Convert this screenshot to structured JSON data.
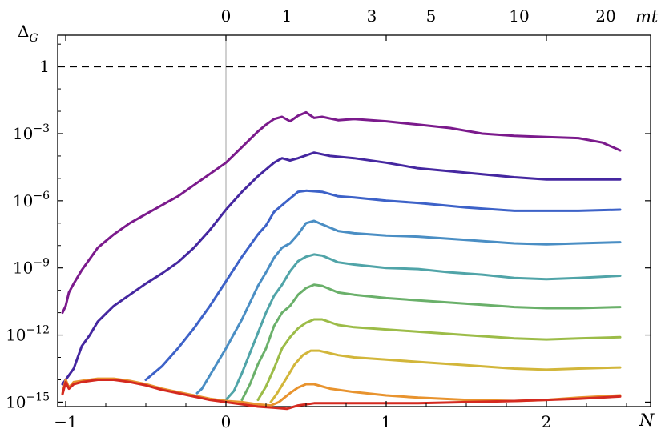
{
  "chart_data": {
    "type": "line",
    "title": "",
    "xlabel": "N",
    "ylabel": "Δ",
    "ylabel_sub": "G",
    "top_axis_label": "mt",
    "xlim": [
      -1.05,
      2.65
    ],
    "ylim_log10": [
      -15.2,
      1.4
    ],
    "y_scale": "log",
    "grid": false,
    "legend": "none",
    "x_ticks": [
      -1,
      0,
      1,
      2
    ],
    "x_tick_labels": [
      "−1",
      "0",
      "1",
      "2"
    ],
    "y_ticks_log10": [
      -15,
      -12,
      -9,
      -6,
      -3,
      0
    ],
    "y_tick_mant": [
      "10",
      "10",
      "10",
      "10",
      "10",
      "1"
    ],
    "y_tick_exp": [
      "−15",
      "−12",
      "−9",
      "−6",
      "−3",
      ""
    ],
    "top_ticks_N": [
      0.0,
      0.38,
      0.91,
      1.28,
      1.83,
      2.37
    ],
    "top_tick_labels": [
      "0",
      "1",
      "3",
      "5",
      "10",
      "20"
    ],
    "reference_line": {
      "log10": 0,
      "style": "dashed",
      "color": "#000000"
    },
    "vertical_line": {
      "x": 0,
      "color": "#b0b0b0"
    },
    "series": [
      {
        "color": "#7b1a8c",
        "points": [
          [
            -1.02,
            -11.0
          ],
          [
            -1.0,
            -10.7
          ],
          [
            -0.98,
            -10.1
          ],
          [
            -0.95,
            -9.7
          ],
          [
            -0.9,
            -9.1
          ],
          [
            -0.85,
            -8.6
          ],
          [
            -0.8,
            -8.1
          ],
          [
            -0.7,
            -7.5
          ],
          [
            -0.6,
            -7.0
          ],
          [
            -0.5,
            -6.6
          ],
          [
            -0.4,
            -6.2
          ],
          [
            -0.3,
            -5.8
          ],
          [
            -0.2,
            -5.3
          ],
          [
            -0.1,
            -4.8
          ],
          [
            0.0,
            -4.3
          ],
          [
            0.1,
            -3.6
          ],
          [
            0.2,
            -2.9
          ],
          [
            0.25,
            -2.6
          ],
          [
            0.3,
            -2.35
          ],
          [
            0.35,
            -2.25
          ],
          [
            0.4,
            -2.45
          ],
          [
            0.45,
            -2.2
          ],
          [
            0.5,
            -2.05
          ],
          [
            0.55,
            -2.3
          ],
          [
            0.6,
            -2.25
          ],
          [
            0.7,
            -2.4
          ],
          [
            0.8,
            -2.35
          ],
          [
            1.0,
            -2.45
          ],
          [
            1.2,
            -2.6
          ],
          [
            1.4,
            -2.75
          ],
          [
            1.6,
            -3.0
          ],
          [
            1.8,
            -3.1
          ],
          [
            2.0,
            -3.15
          ],
          [
            2.2,
            -3.2
          ],
          [
            2.35,
            -3.4
          ],
          [
            2.46,
            -3.75
          ]
        ]
      },
      {
        "color": "#4527a0",
        "points": [
          [
            -1.02,
            -14.2
          ],
          [
            -0.98,
            -13.8
          ],
          [
            -0.95,
            -13.5
          ],
          [
            -0.9,
            -12.5
          ],
          [
            -0.85,
            -12.0
          ],
          [
            -0.8,
            -11.4
          ],
          [
            -0.7,
            -10.7
          ],
          [
            -0.6,
            -10.2
          ],
          [
            -0.5,
            -9.7
          ],
          [
            -0.4,
            -9.25
          ],
          [
            -0.3,
            -8.75
          ],
          [
            -0.2,
            -8.1
          ],
          [
            -0.1,
            -7.3
          ],
          [
            0.0,
            -6.4
          ],
          [
            0.1,
            -5.6
          ],
          [
            0.2,
            -4.9
          ],
          [
            0.3,
            -4.3
          ],
          [
            0.35,
            -4.1
          ],
          [
            0.4,
            -4.2
          ],
          [
            0.45,
            -4.1
          ],
          [
            0.55,
            -3.85
          ],
          [
            0.65,
            -4.0
          ],
          [
            0.8,
            -4.1
          ],
          [
            1.0,
            -4.3
          ],
          [
            1.2,
            -4.55
          ],
          [
            1.5,
            -4.75
          ],
          [
            1.8,
            -4.95
          ],
          [
            2.0,
            -5.05
          ],
          [
            2.2,
            -5.05
          ],
          [
            2.46,
            -5.05
          ]
        ]
      },
      {
        "color": "#3d62c8",
        "points": [
          [
            -0.5,
            -14.0
          ],
          [
            -0.45,
            -13.7
          ],
          [
            -0.4,
            -13.4
          ],
          [
            -0.3,
            -12.6
          ],
          [
            -0.2,
            -11.7
          ],
          [
            -0.1,
            -10.7
          ],
          [
            0.0,
            -9.6
          ],
          [
            0.1,
            -8.5
          ],
          [
            0.2,
            -7.5
          ],
          [
            0.25,
            -7.1
          ],
          [
            0.3,
            -6.5
          ],
          [
            0.35,
            -6.2
          ],
          [
            0.4,
            -5.9
          ],
          [
            0.45,
            -5.6
          ],
          [
            0.5,
            -5.55
          ],
          [
            0.6,
            -5.6
          ],
          [
            0.7,
            -5.8
          ],
          [
            0.8,
            -5.85
          ],
          [
            1.0,
            -6.0
          ],
          [
            1.2,
            -6.1
          ],
          [
            1.5,
            -6.3
          ],
          [
            1.8,
            -6.45
          ],
          [
            2.0,
            -6.45
          ],
          [
            2.2,
            -6.45
          ],
          [
            2.46,
            -6.4
          ]
        ]
      },
      {
        "color": "#4a8ec4",
        "points": [
          [
            -0.18,
            -14.6
          ],
          [
            -0.15,
            -14.4
          ],
          [
            -0.1,
            -13.8
          ],
          [
            0.0,
            -12.6
          ],
          [
            0.1,
            -11.3
          ],
          [
            0.2,
            -9.8
          ],
          [
            0.25,
            -9.2
          ],
          [
            0.3,
            -8.55
          ],
          [
            0.35,
            -8.1
          ],
          [
            0.4,
            -7.9
          ],
          [
            0.45,
            -7.5
          ],
          [
            0.5,
            -7.0
          ],
          [
            0.55,
            -6.9
          ],
          [
            0.6,
            -7.05
          ],
          [
            0.7,
            -7.35
          ],
          [
            0.8,
            -7.45
          ],
          [
            1.0,
            -7.55
          ],
          [
            1.2,
            -7.6
          ],
          [
            1.5,
            -7.75
          ],
          [
            1.8,
            -7.9
          ],
          [
            2.0,
            -7.95
          ],
          [
            2.2,
            -7.9
          ],
          [
            2.46,
            -7.85
          ]
        ]
      },
      {
        "color": "#50a4a8",
        "points": [
          [
            0.0,
            -14.9
          ],
          [
            0.05,
            -14.5
          ],
          [
            0.1,
            -13.7
          ],
          [
            0.15,
            -12.8
          ],
          [
            0.2,
            -11.9
          ],
          [
            0.25,
            -11.0
          ],
          [
            0.3,
            -10.25
          ],
          [
            0.35,
            -9.75
          ],
          [
            0.4,
            -9.15
          ],
          [
            0.45,
            -8.7
          ],
          [
            0.5,
            -8.5
          ],
          [
            0.55,
            -8.4
          ],
          [
            0.6,
            -8.45
          ],
          [
            0.7,
            -8.75
          ],
          [
            0.8,
            -8.85
          ],
          [
            1.0,
            -9.0
          ],
          [
            1.2,
            -9.05
          ],
          [
            1.4,
            -9.2
          ],
          [
            1.6,
            -9.3
          ],
          [
            1.8,
            -9.45
          ],
          [
            2.0,
            -9.5
          ],
          [
            2.2,
            -9.45
          ],
          [
            2.46,
            -9.35
          ]
        ]
      },
      {
        "color": "#6ab06a",
        "points": [
          [
            0.1,
            -14.9
          ],
          [
            0.15,
            -14.2
          ],
          [
            0.2,
            -13.3
          ],
          [
            0.25,
            -12.6
          ],
          [
            0.3,
            -11.6
          ],
          [
            0.35,
            -11.0
          ],
          [
            0.4,
            -10.7
          ],
          [
            0.45,
            -10.2
          ],
          [
            0.5,
            -9.9
          ],
          [
            0.55,
            -9.75
          ],
          [
            0.6,
            -9.8
          ],
          [
            0.7,
            -10.1
          ],
          [
            0.8,
            -10.2
          ],
          [
            1.0,
            -10.35
          ],
          [
            1.2,
            -10.45
          ],
          [
            1.5,
            -10.6
          ],
          [
            1.8,
            -10.75
          ],
          [
            2.0,
            -10.8
          ],
          [
            2.2,
            -10.8
          ],
          [
            2.46,
            -10.75
          ]
        ]
      },
      {
        "color": "#9cbc48",
        "points": [
          [
            0.2,
            -14.9
          ],
          [
            0.25,
            -14.3
          ],
          [
            0.3,
            -13.5
          ],
          [
            0.35,
            -12.6
          ],
          [
            0.4,
            -12.1
          ],
          [
            0.45,
            -11.7
          ],
          [
            0.5,
            -11.45
          ],
          [
            0.55,
            -11.3
          ],
          [
            0.6,
            -11.3
          ],
          [
            0.7,
            -11.55
          ],
          [
            0.8,
            -11.65
          ],
          [
            1.0,
            -11.75
          ],
          [
            1.2,
            -11.85
          ],
          [
            1.5,
            -12.0
          ],
          [
            1.8,
            -12.15
          ],
          [
            2.0,
            -12.2
          ],
          [
            2.2,
            -12.15
          ],
          [
            2.46,
            -12.1
          ]
        ]
      },
      {
        "color": "#d2b63a",
        "points": [
          [
            0.28,
            -15.0
          ],
          [
            0.32,
            -14.6
          ],
          [
            0.38,
            -13.9
          ],
          [
            0.43,
            -13.3
          ],
          [
            0.48,
            -12.9
          ],
          [
            0.53,
            -12.7
          ],
          [
            0.58,
            -12.7
          ],
          [
            0.7,
            -12.9
          ],
          [
            0.8,
            -13.0
          ],
          [
            1.0,
            -13.1
          ],
          [
            1.2,
            -13.2
          ],
          [
            1.5,
            -13.35
          ],
          [
            1.8,
            -13.5
          ],
          [
            2.0,
            -13.55
          ],
          [
            2.2,
            -13.5
          ],
          [
            2.46,
            -13.45
          ]
        ]
      },
      {
        "color": "#e8932e",
        "points": [
          [
            -1.02,
            -14.6
          ],
          [
            -1.0,
            -14.0
          ],
          [
            -0.98,
            -14.35
          ],
          [
            -0.95,
            -14.1
          ],
          [
            -0.9,
            -14.05
          ],
          [
            -0.8,
            -13.95
          ],
          [
            -0.7,
            -13.95
          ],
          [
            -0.6,
            -14.05
          ],
          [
            -0.5,
            -14.2
          ],
          [
            -0.4,
            -14.4
          ],
          [
            -0.3,
            -14.55
          ],
          [
            -0.2,
            -14.7
          ],
          [
            -0.1,
            -14.85
          ],
          [
            0.0,
            -14.95
          ],
          [
            0.1,
            -15.0
          ],
          [
            0.2,
            -15.1
          ],
          [
            0.28,
            -15.15
          ],
          [
            0.33,
            -15.0
          ],
          [
            0.4,
            -14.6
          ],
          [
            0.45,
            -14.35
          ],
          [
            0.5,
            -14.2
          ],
          [
            0.55,
            -14.2
          ],
          [
            0.65,
            -14.4
          ],
          [
            0.8,
            -14.55
          ],
          [
            1.0,
            -14.7
          ],
          [
            1.2,
            -14.8
          ],
          [
            1.5,
            -14.9
          ],
          [
            1.8,
            -14.95
          ],
          [
            2.0,
            -14.9
          ],
          [
            2.2,
            -14.8
          ],
          [
            2.46,
            -14.7
          ]
        ]
      },
      {
        "color": "#d42a20",
        "points": [
          [
            -1.02,
            -14.65
          ],
          [
            -1.0,
            -14.1
          ],
          [
            -0.98,
            -14.4
          ],
          [
            -0.95,
            -14.2
          ],
          [
            -0.9,
            -14.1
          ],
          [
            -0.8,
            -14.0
          ],
          [
            -0.7,
            -14.0
          ],
          [
            -0.6,
            -14.1
          ],
          [
            -0.5,
            -14.25
          ],
          [
            -0.4,
            -14.45
          ],
          [
            -0.3,
            -14.6
          ],
          [
            -0.2,
            -14.75
          ],
          [
            -0.1,
            -14.9
          ],
          [
            0.0,
            -15.0
          ],
          [
            0.1,
            -15.1
          ],
          [
            0.2,
            -15.2
          ],
          [
            0.3,
            -15.25
          ],
          [
            0.38,
            -15.3
          ],
          [
            0.45,
            -15.15
          ],
          [
            0.55,
            -15.05
          ],
          [
            0.7,
            -15.05
          ],
          [
            0.9,
            -15.05
          ],
          [
            1.2,
            -15.05
          ],
          [
            1.5,
            -15.0
          ],
          [
            1.8,
            -14.95
          ],
          [
            2.0,
            -14.9
          ],
          [
            2.2,
            -14.85
          ],
          [
            2.46,
            -14.75
          ]
        ]
      }
    ]
  }
}
